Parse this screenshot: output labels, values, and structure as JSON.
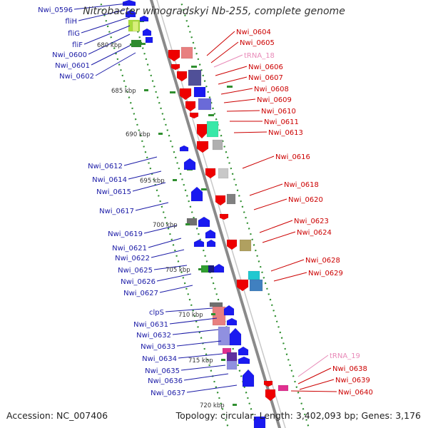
{
  "title": "Nitrobacter winogradskyi Nb-255, complete genome",
  "accession": "Accession: NC_007406",
  "stats": "Topology: circular; Length: 3,402,093 bp; Genes: 3,176",
  "scale_labels": [
    "680 kbp",
    "685 kbp",
    "690 kbp",
    "695 kbp",
    "700 kbp",
    "705 kbp",
    "710 kbp",
    "715 kbp",
    "720 kbp"
  ],
  "left_labels": [
    "Nwi_0596",
    "fliH",
    "fliG",
    "fliF",
    "Nwi_0600",
    "Nwi_0601",
    "Nwi_0602",
    "Nwi_0612",
    "Nwi_0614",
    "Nwi_0615",
    "Nwi_0617",
    "Nwi_0619",
    "Nwi_0621",
    "Nwi_0622",
    "Nwi_0625",
    "Nwi_0626",
    "Nwi_0627",
    "clpS",
    "Nwi_0631",
    "Nwi_0632",
    "Nwi_0633",
    "Nwi_0634",
    "Nwi_0635",
    "Nwi_0636",
    "Nwi_0637"
  ],
  "right_labels": [
    "Nwi_0604",
    "Nwi_0605",
    "tRNA_18",
    "Nwi_0606",
    "Nwi_0607",
    "Nwi_0608",
    "Nwi_0609",
    "Nwi_0610",
    "Nwi_0611",
    "Nwi_0613",
    "Nwi_0616",
    "Nwi_0618",
    "Nwi_0620",
    "Nwi_0623",
    "Nwi_0624",
    "Nwi_0628",
    "Nwi_0629",
    "tRNA_19",
    "Nwi_0638",
    "Nwi_0639",
    "Nwi_0640"
  ],
  "colors": {
    "left_label": "#1a1aa6",
    "right_label": "#cc0000",
    "trna_label": "#e88ab8",
    "backbone": "#8a8a8a",
    "gc_skew": "#2f8f2f",
    "scale_text": "#333333"
  }
}
